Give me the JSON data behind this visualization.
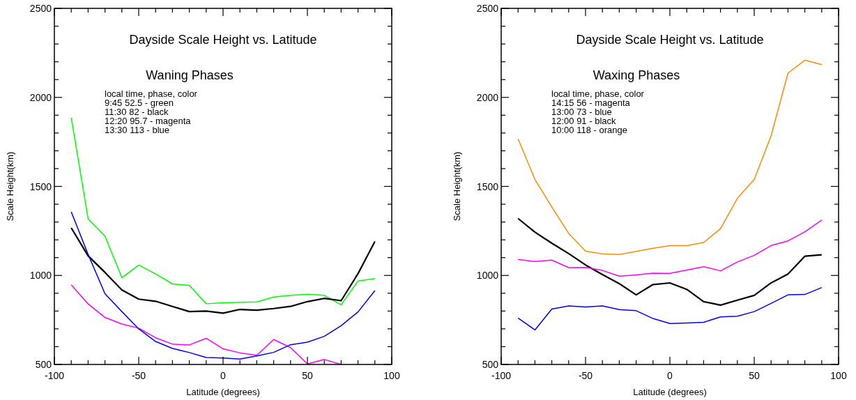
{
  "chart_data": [
    {
      "type": "line",
      "title": "Dayside Scale Height vs. Latitude",
      "subtitle": "Waning Phases",
      "xlabel": "Latitude (degrees)",
      "ylabel": "Scale Height(km)",
      "annotations": [
        "local time, phase, color",
        "9:45 52.5 - green",
        "11:30 82 - black",
        "12:20 95.7 - magenta",
        "13:30 113 - blue"
      ],
      "x": [
        -90,
        -80,
        -70,
        -60,
        -50,
        -40,
        -30,
        -20,
        -10,
        0,
        10,
        20,
        30,
        40,
        50,
        60,
        70,
        80,
        90
      ],
      "xlim": [
        -100,
        100
      ],
      "ylim": [
        500,
        2500
      ],
      "xticks": [
        -100,
        {
          "value": -90,
          "label": null
        },
        {
          "value": -80,
          "label": null
        },
        {
          "value": -70,
          "label": null
        },
        {
          "value": -60,
          "label": null
        },
        -50,
        {
          "value": -40,
          "label": null
        },
        {
          "value": -30,
          "label": null
        },
        {
          "value": -20,
          "label": null
        },
        {
          "value": -10,
          "label": null
        },
        0,
        {
          "value": 10,
          "label": null
        },
        {
          "value": 20,
          "label": null
        },
        {
          "value": 30,
          "label": null
        },
        {
          "value": 40,
          "label": null
        },
        50,
        {
          "value": 60,
          "label": null
        },
        {
          "value": 70,
          "label": null
        },
        {
          "value": 80,
          "label": null
        },
        {
          "value": 90,
          "label": null
        },
        100
      ],
      "yticks": [
        500,
        {
          "value": 600,
          "label": null
        },
        {
          "value": 700,
          "label": null
        },
        {
          "value": 800,
          "label": null
        },
        {
          "value": 900,
          "label": null
        },
        1000,
        {
          "value": 1100,
          "label": null
        },
        {
          "value": 1200,
          "label": null
        },
        {
          "value": 1300,
          "label": null
        },
        {
          "value": 1400,
          "label": null
        },
        1500,
        {
          "value": 1600,
          "label": null
        },
        {
          "value": 1700,
          "label": null
        },
        {
          "value": 1800,
          "label": null
        },
        {
          "value": 1900,
          "label": null
        },
        2000,
        {
          "value": 2100,
          "label": null
        },
        {
          "value": 2200,
          "label": null
        },
        {
          "value": 2300,
          "label": null
        },
        {
          "value": 2400,
          "label": null
        },
        2500
      ],
      "grid": false,
      "series": [
        {
          "color": "#00ff00",
          "values": [
            1885,
            1317,
            1220,
            987,
            1058,
            1008,
            952,
            944,
            841,
            846,
            849,
            851,
            879,
            888,
            894,
            888,
            835,
            969,
            982
          ]
        },
        {
          "color": "#000000",
          "values": [
            1267,
            1110,
            1017,
            919,
            867,
            855,
            826,
            797,
            800,
            788,
            809,
            805,
            814,
            826,
            853,
            871,
            858,
            1010,
            1191
          ]
        },
        {
          "color": "#ff00ff",
          "values": [
            947,
            840,
            764,
            727,
            704,
            650,
            614,
            610,
            647,
            588,
            565,
            552,
            640,
            595,
            503,
            528,
            500,
            null,
            null
          ]
        },
        {
          "color": "#0000ff",
          "values": [
            1357,
            1118,
            897,
            797,
            700,
            629,
            590,
            567,
            539,
            536,
            530,
            548,
            568,
            611,
            625,
            658,
            718,
            795,
            915
          ]
        }
      ]
    },
    {
      "type": "line",
      "title": "Dayside Scale Height vs. Latitude",
      "subtitle": "Waxing Phases",
      "xlabel": "Latitude (degrees)",
      "ylabel": "Scale Height(km)",
      "annotations": [
        "local time, phase, color",
        "14:15 56 - magenta",
        "13:00 73 - blue",
        "12:00 91 - black",
        "10:00 118 - orange"
      ],
      "x": [
        -90,
        -80,
        -70,
        -60,
        -50,
        -40,
        -30,
        -20,
        -10,
        0,
        10,
        20,
        30,
        40,
        50,
        60,
        70,
        80,
        90
      ],
      "xlim": [
        -100,
        100
      ],
      "ylim": [
        500,
        2500
      ],
      "xticks": [
        -100,
        {
          "value": -90,
          "label": null
        },
        {
          "value": -80,
          "label": null
        },
        {
          "value": -70,
          "label": null
        },
        {
          "value": -60,
          "label": null
        },
        -50,
        {
          "value": -40,
          "label": null
        },
        {
          "value": -30,
          "label": null
        },
        {
          "value": -20,
          "label": null
        },
        {
          "value": -10,
          "label": null
        },
        0,
        {
          "value": 10,
          "label": null
        },
        {
          "value": 20,
          "label": null
        },
        {
          "value": 30,
          "label": null
        },
        {
          "value": 40,
          "label": null
        },
        50,
        {
          "value": 60,
          "label": null
        },
        {
          "value": 70,
          "label": null
        },
        {
          "value": 80,
          "label": null
        },
        {
          "value": 90,
          "label": null
        },
        100
      ],
      "yticks": [
        500,
        {
          "value": 600,
          "label": null
        },
        {
          "value": 700,
          "label": null
        },
        {
          "value": 800,
          "label": null
        },
        {
          "value": 900,
          "label": null
        },
        1000,
        {
          "value": 1100,
          "label": null
        },
        {
          "value": 1200,
          "label": null
        },
        {
          "value": 1300,
          "label": null
        },
        {
          "value": 1400,
          "label": null
        },
        1500,
        {
          "value": 1600,
          "label": null
        },
        {
          "value": 1700,
          "label": null
        },
        {
          "value": 1800,
          "label": null
        },
        {
          "value": 1900,
          "label": null
        },
        2000,
        {
          "value": 2100,
          "label": null
        },
        {
          "value": 2200,
          "label": null
        },
        {
          "value": 2300,
          "label": null
        },
        {
          "value": 2400,
          "label": null
        },
        2500
      ],
      "grid": false,
      "series": [
        {
          "color": "#ff8c00",
          "values": [
            1767,
            1539,
            1384,
            1236,
            1136,
            1121,
            1117,
            1135,
            1153,
            1167,
            1167,
            1185,
            1263,
            1433,
            1539,
            1785,
            2136,
            2209,
            2184
          ]
        },
        {
          "color": "#000000",
          "values": [
            1320,
            1243,
            1181,
            1123,
            1059,
            1005,
            954,
            891,
            949,
            958,
            922,
            853,
            833,
            861,
            888,
            958,
            1008,
            1108,
            1116
          ]
        },
        {
          "color": "#ff00ff",
          "values": [
            1090,
            1078,
            1086,
            1044,
            1045,
            1028,
            996,
            1003,
            1013,
            1012,
            1030,
            1049,
            1026,
            1076,
            1113,
            1168,
            1194,
            1245,
            1311
          ]
        },
        {
          "color": "#0000ff",
          "values": [
            761,
            694,
            811,
            829,
            823,
            829,
            808,
            802,
            758,
            730,
            733,
            737,
            767,
            771,
            797,
            843,
            891,
            893,
            932
          ]
        }
      ]
    }
  ]
}
